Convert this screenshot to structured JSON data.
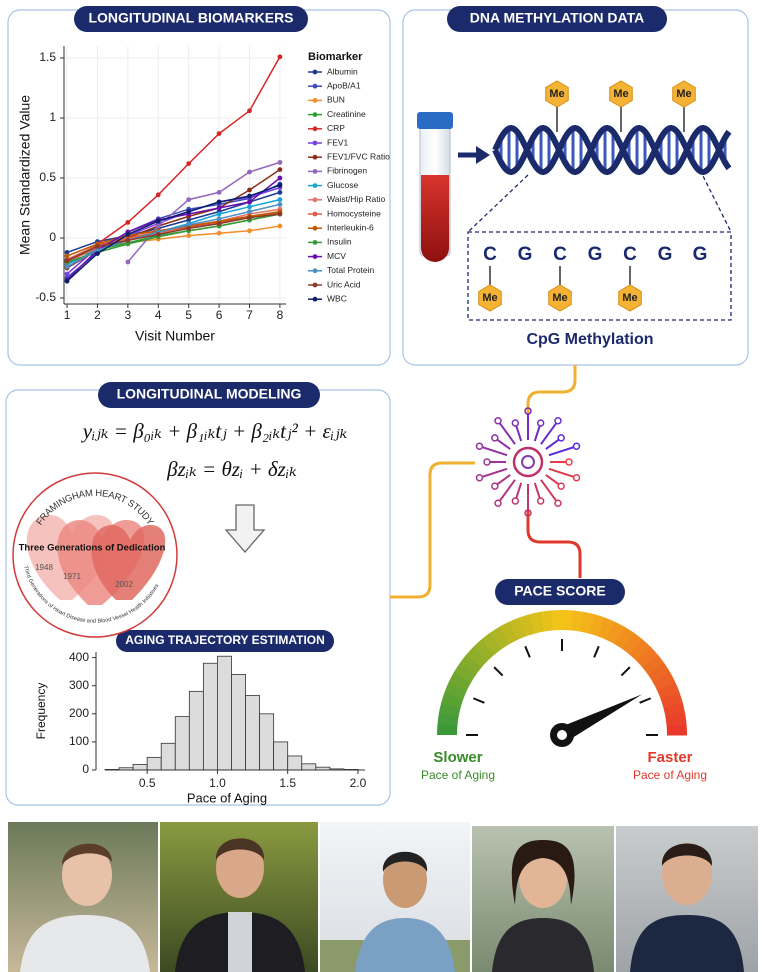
{
  "panels": {
    "biomarkers": {
      "title": "LONGITUDINAL BIOMARKERS"
    },
    "methylation": {
      "title": "DNA METHYLATION DATA",
      "me_labels": [
        "Me",
        "Me",
        "Me"
      ],
      "cpg_bases": [
        "C",
        "G",
        "C",
        "G",
        "C",
        "G",
        "G"
      ],
      "cpg_me": [
        "Me",
        "Me",
        "Me"
      ],
      "caption": "CpG Methylation"
    },
    "modeling": {
      "title": "LONGITUDINAL MODELING",
      "equations": [
        "yᵢⱼₖ = β₀ᵢₖ + β₁ᵢₖtⱼ + β₂ᵢₖtⱼ² + εᵢⱼₖ",
        "βzᵢₖ = θzᵢ + δzᵢₖ"
      ],
      "logo": {
        "ring_top": "FRAMINGHAM HEART STUDY",
        "center": "Three Generations of Dedication",
        "years": [
          "1948",
          "1971",
          "2002"
        ],
        "ring_bottom": "Third Generations of Heart Disease and Blood Vessel Health Initiatives"
      }
    },
    "pace": {
      "title": "PACE SCORE",
      "slower": "Slower",
      "slower_sub": "Pace of Aging",
      "faster": "Faster",
      "faster_sub": "Pace of Aging"
    }
  },
  "chart_data": [
    {
      "type": "line",
      "y_label": "Mean Standardized Value",
      "x_label": "Visit Number",
      "legend_title": "Biomarker",
      "x": [
        1,
        2,
        3,
        4,
        5,
        6,
        7,
        8
      ],
      "xlim": [
        0.9,
        8.2
      ],
      "ylim": [
        -0.55,
        1.6
      ],
      "xticks": [
        1,
        2,
        3,
        4,
        5,
        6,
        7,
        8
      ],
      "yticks": [
        -0.5,
        0,
        0.5,
        1,
        1.5
      ],
      "grid": true,
      "series": [
        {
          "name": "Albumin",
          "color": "#1f3a93",
          "values": [
            -0.12,
            -0.03,
            0.02,
            0.08,
            0.15,
            0.22,
            0.3,
            0.38
          ]
        },
        {
          "name": "ApoB/A1",
          "color": "#3b4cc0",
          "values": [
            -0.33,
            -0.12,
            0.05,
            0.16,
            0.24,
            0.28,
            0.33,
            0.45
          ]
        },
        {
          "name": "BUN",
          "color": "#f28e2b",
          "values": [
            -0.2,
            -0.08,
            -0.04,
            -0.01,
            0.02,
            0.04,
            0.06,
            0.1
          ]
        },
        {
          "name": "Creatinine",
          "color": "#2ca02c",
          "values": [
            -0.18,
            -0.1,
            -0.04,
            0.02,
            0.06,
            0.1,
            0.15,
            0.2
          ]
        },
        {
          "name": "CRP",
          "color": "#d62728",
          "values": [
            -0.22,
            -0.05,
            0.13,
            0.36,
            0.62,
            0.87,
            1.06,
            1.51
          ]
        },
        {
          "name": "FEV1",
          "color": "#7b3fe4",
          "values": [
            -0.3,
            -0.08,
            0.02,
            0.12,
            0.22,
            0.3,
            0.34,
            0.42
          ]
        },
        {
          "name": "FEV1/FVC Ratio",
          "color": "#8c2d19",
          "values": [
            -0.25,
            -0.1,
            0.0,
            0.1,
            0.18,
            0.25,
            0.4,
            0.57
          ]
        },
        {
          "name": "Fibrinogen",
          "color": "#9467bd",
          "values": [
            null,
            null,
            -0.2,
            0.1,
            0.32,
            0.38,
            0.55,
            0.63
          ]
        },
        {
          "name": "Glucose",
          "color": "#17a2d8",
          "values": [
            -0.22,
            -0.1,
            -0.02,
            0.05,
            0.12,
            0.2,
            0.26,
            0.32
          ]
        },
        {
          "name": "Waist/Hip Ratio",
          "color": "#e8726b",
          "values": [
            -0.2,
            -0.08,
            -0.01,
            0.04,
            0.1,
            0.14,
            0.2,
            0.24
          ]
        },
        {
          "name": "Homocysteine",
          "color": "#e05a47",
          "values": [
            -0.18,
            -0.06,
            0.0,
            0.05,
            0.09,
            0.13,
            0.17,
            0.21
          ]
        },
        {
          "name": "Interleukin-6",
          "color": "#c05a00",
          "values": [
            -0.15,
            -0.05,
            0.02,
            0.06,
            0.1,
            0.14,
            0.18,
            0.22
          ]
        },
        {
          "name": "Insulin",
          "color": "#3a9a3a",
          "values": [
            -0.2,
            -0.12,
            -0.05,
            0.01,
            0.06,
            0.1,
            0.15,
            0.2
          ]
        },
        {
          "name": "MCV",
          "color": "#6a0dad",
          "values": [
            -0.35,
            -0.1,
            0.05,
            0.15,
            0.2,
            0.25,
            0.3,
            0.5
          ]
        },
        {
          "name": "Total Protein",
          "color": "#4a90c2",
          "values": [
            -0.24,
            -0.1,
            -0.02,
            0.05,
            0.11,
            0.16,
            0.22,
            0.28
          ]
        },
        {
          "name": "Uric Acid",
          "color": "#8b3a2a",
          "values": [
            -0.19,
            -0.07,
            -0.02,
            0.03,
            0.08,
            0.12,
            0.17,
            0.2
          ]
        },
        {
          "name": "WBC",
          "color": "#0b1f6b",
          "values": [
            -0.36,
            -0.13,
            0.03,
            0.14,
            0.22,
            0.3,
            0.35,
            0.44
          ]
        }
      ]
    },
    {
      "type": "histogram",
      "title": "AGING TRAJECTORY ESTIMATION",
      "x_label": "Pace of Aging",
      "y_label": "Frequency",
      "bins": [
        0.2,
        0.3,
        0.4,
        0.5,
        0.6,
        0.7,
        0.8,
        0.9,
        1.0,
        1.1,
        1.2,
        1.3,
        1.4,
        1.5,
        1.6,
        1.7,
        1.8,
        1.9,
        2.0
      ],
      "values": [
        2,
        8,
        20,
        45,
        95,
        190,
        280,
        380,
        405,
        340,
        265,
        200,
        100,
        50,
        22,
        10,
        4,
        2
      ],
      "color": "#dcdcdc",
      "xlim": [
        0.2,
        2.05
      ],
      "ylim": [
        0,
        420
      ],
      "xticks": [
        0.5,
        {
          "value": 1,
          "label": "1.0"
        },
        1.5,
        {
          "value": 2,
          "label": "2.0"
        }
      ],
      "yticks": [
        0,
        100,
        200,
        300,
        400
      ]
    }
  ]
}
